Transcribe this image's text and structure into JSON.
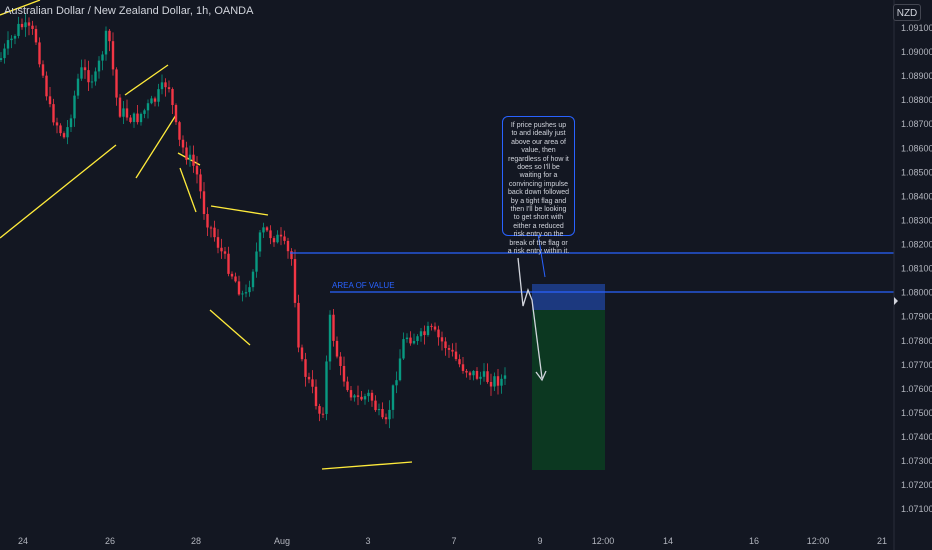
{
  "header": {
    "title": "Australian Dollar / New Zealand Dollar, 1h, OANDA",
    "currency": "NZD"
  },
  "colors": {
    "background": "#131722",
    "up_candle": "#089981",
    "down_candle": "#f23645",
    "trendline": "#ffeb3b",
    "level_line": "#2962ff",
    "stop_zone": "#1e3a8a",
    "target_zone": "#0e3b24",
    "projection": "#d1d4dc"
  },
  "annotations": {
    "area_of_value": "AREA OF VALUE",
    "note": "If price pushes up to and ideally just above our area of value, then regardless of how it does so I'll be waiting for a convincing impulse back down followed by a tight flag and then I'll be looking to get short with either a reduced risk entry on the break of the flag or a risk entry within it."
  },
  "price_axis": {
    "ticks": [
      "1.09100",
      "1.09000",
      "1.08900",
      "1.08800",
      "1.08700",
      "1.08600",
      "1.08500",
      "1.08400",
      "1.08300",
      "1.08200",
      "1.08100",
      "1.08000",
      "1.07900",
      "1.07800",
      "1.07700",
      "1.07600",
      "1.07500",
      "1.07400",
      "1.07300",
      "1.07200",
      "1.07100"
    ]
  },
  "time_axis": {
    "ticks": [
      "24",
      "26",
      "28",
      "Aug",
      "3",
      "7",
      "9",
      "12:00",
      "14",
      "16",
      "12:00",
      "21"
    ]
  },
  "chart_data": {
    "type": "candlestick",
    "symbol": "Australian Dollar / New Zealand Dollar",
    "interval": "1h",
    "source": "OANDA",
    "ylim": [
      1.07048,
      1.09224
    ],
    "levels": [
      1.08187,
      1.08031
    ],
    "area_of_value": [
      1.08031,
      1.0806
    ]
  }
}
